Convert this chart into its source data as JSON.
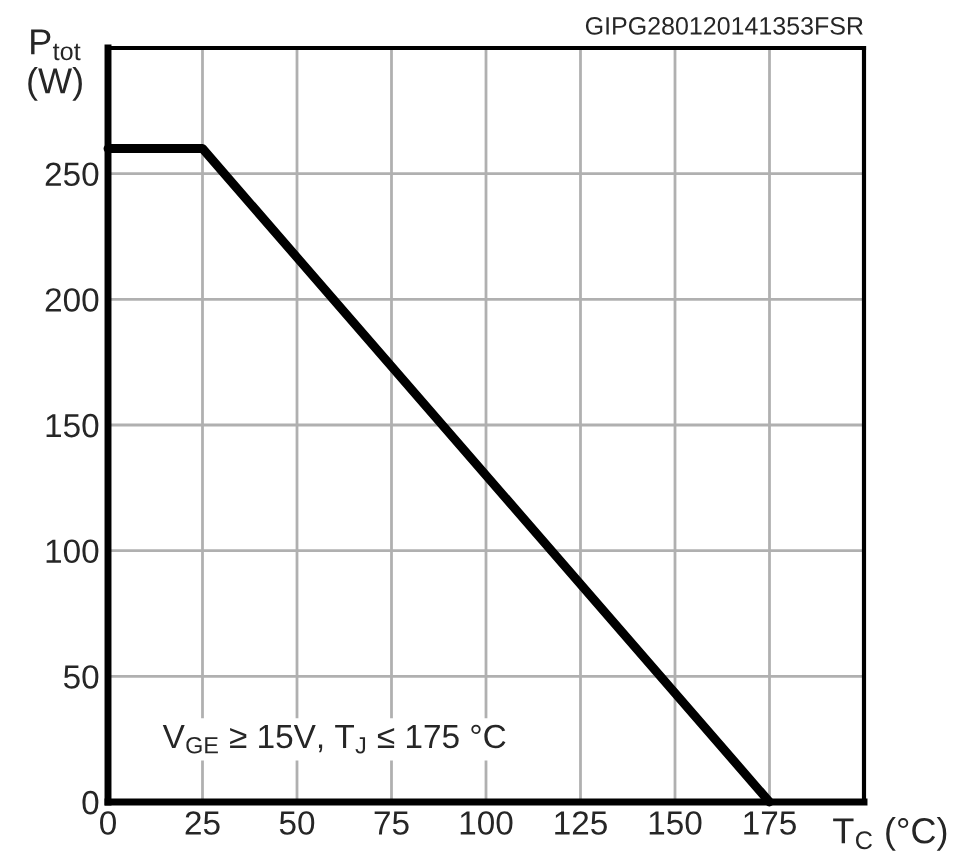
{
  "chart_data": {
    "type": "line",
    "xlabel": "T$_{C}$ (°C)",
    "ylabel": "P$_{tot}$\n(W)",
    "x": [
      0,
      25,
      175
    ],
    "series": [
      {
        "color": "#000000",
        "values": [
          260,
          260,
          0
        ]
      }
    ],
    "xlim": [
      0,
      200
    ],
    "ylim": [
      0,
      300
    ],
    "xticks": [
      0,
      25,
      50,
      75,
      100,
      125,
      150,
      175,
      {
        "value": 200,
        "label": null
      }
    ],
    "yticks": [
      0,
      50,
      100,
      150,
      200,
      250,
      {
        "value": 300,
        "label": null
      }
    ],
    "grid": true,
    "legend": false,
    "marker": "none",
    "line_style": "solid",
    "annotations": [
      "GIPG280120141353FSR",
      "V$_{GE}$ ≥ 15V, T$_{J}$ ≤ 175 °C"
    ]
  }
}
